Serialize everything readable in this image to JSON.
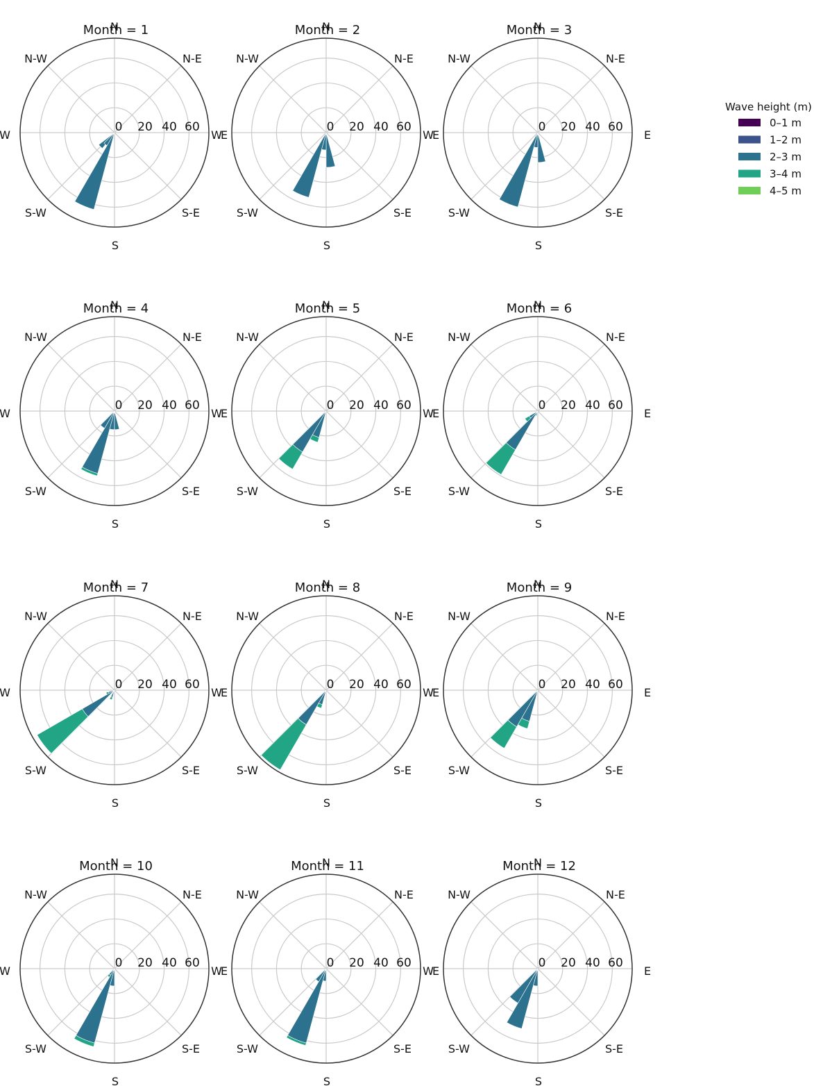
{
  "chart_data": {
    "type": "wind-rose",
    "direction_labels": [
      "N",
      "N-E",
      "E",
      "S-E",
      "S",
      "S-W",
      "W",
      "N-W"
    ],
    "radial_ticks": [
      "0",
      "20",
      "40",
      "60"
    ],
    "rlim": [
      0,
      76
    ],
    "legend": {
      "title": "Wave height (m)",
      "placement": "right",
      "entries": [
        {
          "label": "0–1 m",
          "color": "#440154"
        },
        {
          "label": "1–2 m",
          "color": "#3b528b"
        },
        {
          "label": "2–3 m",
          "color": "#2c728e"
        },
        {
          "label": "3–4 m",
          "color": "#21a585"
        },
        {
          "label": "4–5 m",
          "color": "#6ece58"
        }
      ]
    },
    "sector_width_deg": 15,
    "panels": [
      {
        "title": "Month = 1",
        "bars": [
          {
            "dir": 202.5,
            "stack": [
              0,
              0,
              64,
              0,
              0
            ]
          },
          {
            "dir": 225,
            "stack": [
              0,
              0,
              16,
              0,
              0
            ]
          },
          {
            "dir": 217.5,
            "stack": [
              0,
              0,
              12,
              0,
              0
            ]
          }
        ]
      },
      {
        "title": "Month = 2",
        "bars": [
          {
            "dir": 202.5,
            "stack": [
              0,
              0,
              54,
              0,
              0
            ]
          },
          {
            "dir": 172.5,
            "stack": [
              0,
              0,
              28,
              0,
              0
            ]
          },
          {
            "dir": 187.5,
            "stack": [
              0,
              0,
              14,
              0,
              0
            ]
          }
        ]
      },
      {
        "title": "Month = 3",
        "bars": [
          {
            "dir": 202.5,
            "stack": [
              0,
              0,
              62,
              0,
              0
            ]
          },
          {
            "dir": 172.5,
            "stack": [
              0,
              0,
              24,
              0,
              0
            ]
          },
          {
            "dir": 187.5,
            "stack": [
              0,
              0,
              12,
              0,
              0
            ]
          }
        ]
      },
      {
        "title": "Month = 4",
        "bars": [
          {
            "dir": 202.5,
            "stack": [
              0,
              0,
              52,
              2,
              0
            ]
          },
          {
            "dir": 217.5,
            "stack": [
              0,
              0,
              16,
              0,
              0
            ]
          },
          {
            "dir": 187.5,
            "stack": [
              0,
              0,
              15,
              0,
              0
            ]
          },
          {
            "dir": 172.5,
            "stack": [
              0,
              0,
              15,
              0,
              0
            ]
          }
        ]
      },
      {
        "title": "Month = 5",
        "bars": [
          {
            "dir": 217.5,
            "stack": [
              0,
              0,
              38,
              16,
              0
            ]
          },
          {
            "dir": 202.5,
            "stack": [
              0,
              0,
              22,
              4,
              0
            ]
          }
        ]
      },
      {
        "title": "Month = 6",
        "bars": [
          {
            "dir": 217.5,
            "stack": [
              0,
              0,
              36,
              23,
              0
            ]
          },
          {
            "dir": 232.5,
            "stack": [
              0,
              0,
              8,
              4,
              0
            ]
          },
          {
            "dir": 202.5,
            "stack": [
              0,
              0,
              4,
              0,
              0
            ]
          }
        ]
      },
      {
        "title": "Month = 7",
        "bars": [
          {
            "dir": 232.5,
            "stack": [
              0,
              0,
              30,
              42,
              0
            ]
          },
          {
            "dir": 202.5,
            "stack": [
              0,
              0,
              6,
              2,
              0
            ]
          },
          {
            "dir": 247.5,
            "stack": [
              0,
              0,
              5,
              2,
              0
            ]
          }
        ]
      },
      {
        "title": "Month = 8",
        "bars": [
          {
            "dir": 217.5,
            "stack": [
              0,
              0,
              32,
              42,
              0
            ]
          },
          {
            "dir": 202.5,
            "stack": [
              0,
              0,
              12,
              3,
              0
            ]
          }
        ]
      },
      {
        "title": "Month = 9",
        "bars": [
          {
            "dir": 217.5,
            "stack": [
              0,
              0,
              34,
              20,
              0
            ]
          },
          {
            "dir": 202.5,
            "stack": [
              0,
              0,
              26,
              6,
              0
            ]
          }
        ]
      },
      {
        "title": "Month = 10",
        "bars": [
          {
            "dir": 202.5,
            "stack": [
              0,
              0,
              62,
              3,
              0
            ]
          },
          {
            "dir": 217.5,
            "stack": [
              0,
              0,
              6,
              2,
              0
            ]
          },
          {
            "dir": 187.5,
            "stack": [
              0,
              0,
              14,
              0,
              0
            ]
          }
        ]
      },
      {
        "title": "Month = 11",
        "bars": [
          {
            "dir": 202.5,
            "stack": [
              0,
              0,
              62,
              2,
              0
            ]
          },
          {
            "dir": 217.5,
            "stack": [
              0,
              0,
              12,
              0,
              0
            ]
          },
          {
            "dir": 187.5,
            "stack": [
              0,
              0,
              10,
              0,
              0
            ]
          }
        ]
      },
      {
        "title": "Month = 12",
        "bars": [
          {
            "dir": 202.5,
            "stack": [
              0,
              0,
              50,
              0,
              0
            ]
          },
          {
            "dir": 217.5,
            "stack": [
              0,
              0,
              32,
              0,
              0
            ]
          },
          {
            "dir": 187.5,
            "stack": [
              0,
              0,
              14,
              0,
              0
            ]
          }
        ]
      }
    ]
  }
}
